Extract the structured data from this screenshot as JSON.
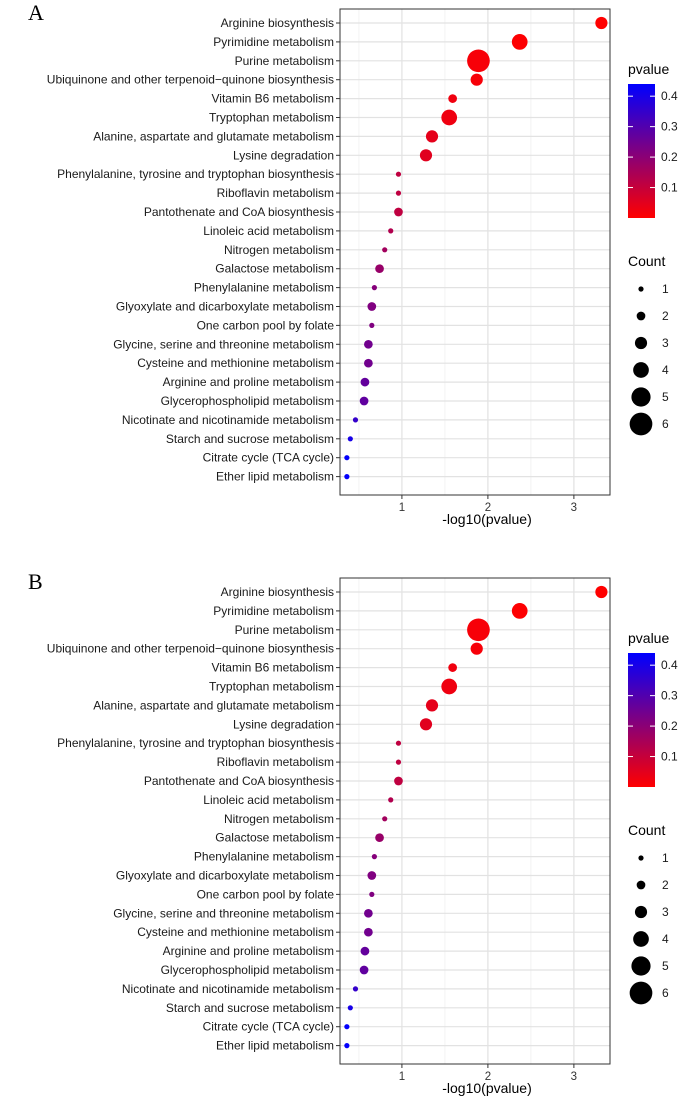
{
  "chart_data": [
    {
      "panel": "A",
      "type": "scatter",
      "xlabel": "-log10(pvalue)",
      "ylabel": "",
      "xlim": [
        0.28,
        3.42
      ],
      "xticks": [
        1,
        2,
        3
      ],
      "grid": true,
      "categories": [
        "Arginine biosynthesis",
        "Pyrimidine metabolism",
        "Purine metabolism",
        "Ubiquinone and other terpenoid−quinone biosynthesis",
        "Vitamin B6 metabolism",
        "Tryptophan metabolism",
        "Alanine, aspartate and glutamate metabolism",
        "Lysine degradation",
        "Phenylalanine, tyrosine and tryptophan biosynthesis",
        "Riboflavin metabolism",
        "Pantothenate and CoA biosynthesis",
        "Linoleic acid metabolism",
        "Nitrogen metabolism",
        "Galactose metabolism",
        "Phenylalanine metabolism",
        "Glyoxylate and dicarboxylate metabolism",
        "One carbon pool by folate",
        "Glycine, serine and threonine metabolism",
        "Cysteine and methionine metabolism",
        "Arginine and proline metabolism",
        "Glycerophospholipid metabolism",
        "Nicotinate and nicotinamide metabolism",
        "Starch and sucrose metabolism",
        "Citrate cycle (TCA cycle)",
        "Ether lipid metabolism"
      ],
      "x": [
        3.32,
        2.37,
        1.89,
        1.87,
        1.59,
        1.55,
        1.35,
        1.28,
        0.96,
        0.96,
        0.96,
        0.87,
        0.8,
        0.74,
        0.68,
        0.65,
        0.65,
        0.61,
        0.61,
        0.57,
        0.56,
        0.46,
        0.4,
        0.36,
        0.36
      ],
      "count": [
        3,
        4,
        6,
        3,
        2,
        4,
        3,
        3,
        1,
        1,
        2,
        1,
        1,
        2,
        1,
        2,
        1,
        2,
        2,
        2,
        2,
        1,
        1,
        1,
        1
      ],
      "pvalue": [
        0.0005,
        0.004,
        0.013,
        0.0135,
        0.026,
        0.028,
        0.045,
        0.052,
        0.11,
        0.11,
        0.11,
        0.135,
        0.16,
        0.18,
        0.21,
        0.22,
        0.22,
        0.245,
        0.245,
        0.27,
        0.275,
        0.35,
        0.4,
        0.435,
        0.435
      ],
      "legend": {
        "pvalue": {
          "title": "pvalue",
          "ticks": [
            0.1,
            0.2,
            0.3,
            0.4
          ],
          "range": [
            0.0,
            0.44
          ],
          "low_color": "#ff0000",
          "high_color": "#0000ff"
        },
        "count": {
          "title": "Count",
          "values": [
            1,
            2,
            3,
            4,
            5,
            6
          ]
        }
      }
    },
    {
      "panel": "B",
      "type": "scatter",
      "xlabel": "-log10(pvalue)",
      "ylabel": "",
      "xlim": [
        0.28,
        3.42
      ],
      "xticks": [
        1,
        2,
        3
      ],
      "grid": true,
      "categories": [
        "Arginine biosynthesis",
        "Pyrimidine metabolism",
        "Purine metabolism",
        "Ubiquinone and other terpenoid−quinone biosynthesis",
        "Vitamin B6 metabolism",
        "Tryptophan metabolism",
        "Alanine, aspartate and glutamate metabolism",
        "Lysine degradation",
        "Phenylalanine, tyrosine and tryptophan biosynthesis",
        "Riboflavin metabolism",
        "Pantothenate and CoA biosynthesis",
        "Linoleic acid metabolism",
        "Nitrogen metabolism",
        "Galactose metabolism",
        "Phenylalanine metabolism",
        "Glyoxylate and dicarboxylate metabolism",
        "One carbon pool by folate",
        "Glycine, serine and threonine metabolism",
        "Cysteine and methionine metabolism",
        "Arginine and proline metabolism",
        "Glycerophospholipid metabolism",
        "Nicotinate and nicotinamide metabolism",
        "Starch and sucrose metabolism",
        "Citrate cycle (TCA cycle)",
        "Ether lipid metabolism"
      ],
      "x": [
        3.32,
        2.37,
        1.89,
        1.87,
        1.59,
        1.55,
        1.35,
        1.28,
        0.96,
        0.96,
        0.96,
        0.87,
        0.8,
        0.74,
        0.68,
        0.65,
        0.65,
        0.61,
        0.61,
        0.57,
        0.56,
        0.46,
        0.4,
        0.36,
        0.36
      ],
      "count": [
        3,
        4,
        6,
        3,
        2,
        4,
        3,
        3,
        1,
        1,
        2,
        1,
        1,
        2,
        1,
        2,
        1,
        2,
        2,
        2,
        2,
        1,
        1,
        1,
        1
      ],
      "pvalue": [
        0.0005,
        0.004,
        0.013,
        0.0135,
        0.026,
        0.028,
        0.045,
        0.052,
        0.11,
        0.11,
        0.11,
        0.135,
        0.16,
        0.18,
        0.21,
        0.22,
        0.22,
        0.245,
        0.245,
        0.27,
        0.275,
        0.35,
        0.4,
        0.435,
        0.435
      ],
      "legend": {
        "pvalue": {
          "title": "pvalue",
          "ticks": [
            0.1,
            0.2,
            0.3,
            0.4
          ],
          "range": [
            0.0,
            0.44
          ],
          "low_color": "#ff0000",
          "high_color": "#0000ff"
        },
        "count": {
          "title": "Count",
          "values": [
            1,
            2,
            3,
            4,
            5,
            6
          ]
        }
      }
    }
  ]
}
